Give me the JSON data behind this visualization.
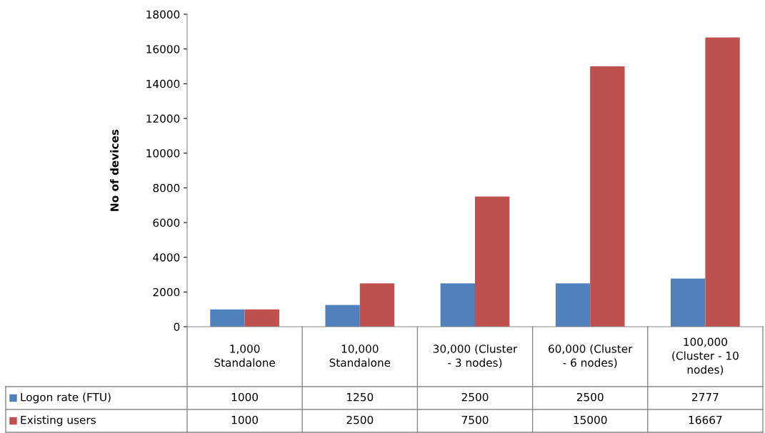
{
  "chart_data": {
    "type": "bar",
    "ylabel": "No of devices",
    "categories": [
      "1,000\nStandalone",
      "10,000\nStandalone",
      "30,000 (Cluster\n- 3 nodes)",
      "60,000 (Cluster\n- 6 nodes)",
      "100,000\n(Cluster - 10\nnodes)"
    ],
    "series": [
      {
        "name": "Logon rate (FTU)",
        "color": "#4f81bd",
        "values": [
          1000,
          1250,
          2500,
          2500,
          2777
        ]
      },
      {
        "name": "Existing users",
        "color": "#c0504d",
        "values": [
          1000,
          2500,
          7500,
          15000,
          16667
        ]
      }
    ],
    "ylim": [
      0,
      18000
    ],
    "yticks": [
      0,
      2000,
      4000,
      6000,
      8000,
      10000,
      12000,
      14000,
      16000,
      18000
    ],
    "grid": false,
    "legend": "bottom",
    "data_labels": true
  }
}
